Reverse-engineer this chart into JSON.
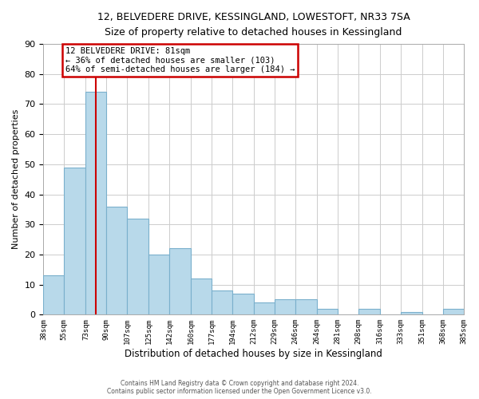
{
  "title": "12, BELVEDERE DRIVE, KESSINGLAND, LOWESTOFT, NR33 7SA",
  "subtitle": "Size of property relative to detached houses in Kessingland",
  "xlabel": "Distribution of detached houses by size in Kessingland",
  "ylabel": "Number of detached properties",
  "bar_values": [
    13,
    49,
    74,
    36,
    32,
    20,
    22,
    12,
    8,
    7,
    4,
    5,
    5,
    2,
    0,
    2,
    0,
    1,
    0,
    2
  ],
  "bin_labels": [
    "38sqm",
    "55sqm",
    "73sqm",
    "90sqm",
    "107sqm",
    "125sqm",
    "142sqm",
    "160sqm",
    "177sqm",
    "194sqm",
    "212sqm",
    "229sqm",
    "246sqm",
    "264sqm",
    "281sqm",
    "298sqm",
    "316sqm",
    "333sqm",
    "351sqm",
    "368sqm",
    "385sqm"
  ],
  "bin_edges": [
    38,
    55,
    73,
    90,
    107,
    125,
    142,
    160,
    177,
    194,
    212,
    229,
    246,
    264,
    281,
    298,
    316,
    333,
    351,
    368,
    385
  ],
  "bar_color": "#b8d9ea",
  "bar_edgecolor": "#7ab0cc",
  "property_line_x": 81,
  "annotation_title": "12 BELVEDERE DRIVE: 81sqm",
  "annotation_line1": "← 36% of detached houses are smaller (103)",
  "annotation_line2": "64% of semi-detached houses are larger (184) →",
  "annotation_box_color": "#ffffff",
  "annotation_box_edgecolor": "#cc0000",
  "redline_color": "#cc0000",
  "ylim": [
    0,
    90
  ],
  "yticks": [
    0,
    10,
    20,
    30,
    40,
    50,
    60,
    70,
    80,
    90
  ],
  "footer_line1": "Contains HM Land Registry data © Crown copyright and database right 2024.",
  "footer_line2": "Contains public sector information licensed under the Open Government Licence v3.0.",
  "background_color": "#ffffff",
  "grid_color": "#cccccc"
}
